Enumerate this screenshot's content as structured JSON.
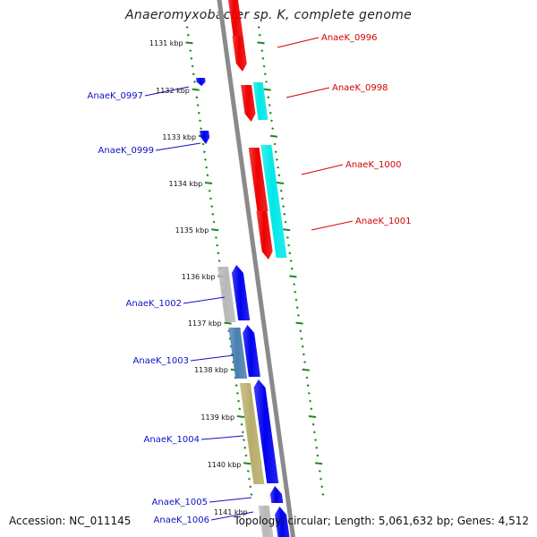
{
  "title": "Anaeromyxobacter sp. K, complete genome",
  "footer": {
    "accession": "Accession: NC_011145",
    "summary": "Topology: circular; Length: 5,061,632 bp; Genes: 4,512"
  },
  "colors": {
    "forward_label": "#d40000",
    "reverse_label": "#1010c8",
    "backbone": "#8a8a8a",
    "tick": "#1a8a1a",
    "forward_cds": "#ee0000",
    "forward_feature": "#00e8e8",
    "reverse_cds": "#0000ee",
    "reverse_feature_grey": "#b8b8b8",
    "reverse_feature_steel": "#4a7fb0",
    "reverse_feature_olive": "#b8ae6a"
  },
  "kbp_ticks": [
    "1131 kbp",
    "1132 kbp",
    "1133 kbp",
    "1134 kbp",
    "1135 kbp",
    "1136 kbp",
    "1137 kbp",
    "1138 kbp",
    "1139 kbp",
    "1140 kbp",
    "1141 kbp"
  ],
  "gene_labels": {
    "forward": [
      "AnaeK_0996",
      "AnaeK_0998",
      "AnaeK_1000",
      "AnaeK_1001"
    ],
    "reverse": [
      "AnaeK_0997",
      "AnaeK_0999",
      "AnaeK_1002",
      "AnaeK_1003",
      "AnaeK_1004",
      "AnaeK_1005",
      "AnaeK_1006"
    ]
  }
}
